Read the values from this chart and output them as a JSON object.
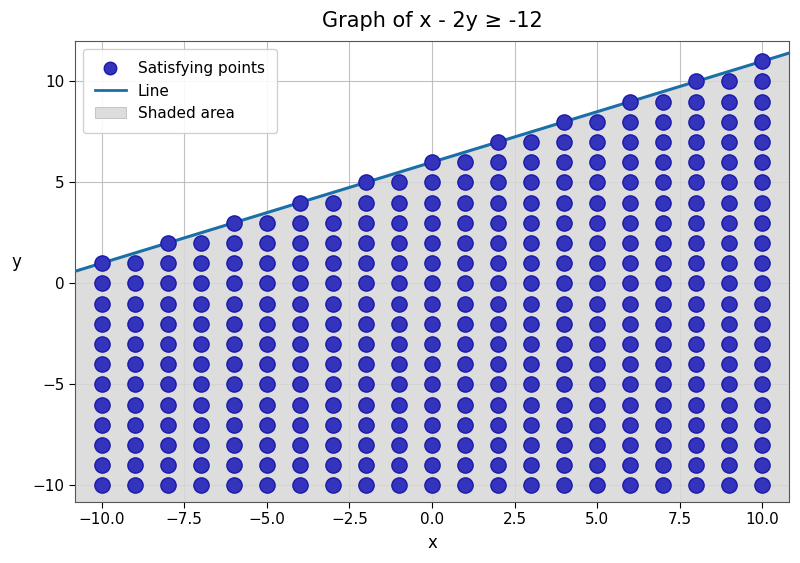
{
  "title": "Graph of x - 2y ≥ -12",
  "xlabel": "x",
  "ylabel": "y",
  "xlim": [
    -10.8,
    10.8
  ],
  "ylim": [
    -10.8,
    12.0
  ],
  "x_ticks": [
    -10.0,
    -7.5,
    -5.0,
    -2.5,
    0.0,
    2.5,
    5.0,
    7.5,
    10.0
  ],
  "y_ticks": [
    -10,
    -5,
    0,
    5,
    10
  ],
  "line_color": "#1a6fa8",
  "line_width": 2.2,
  "dot_color": "#3333bb",
  "dot_edge_color": "#1a1aaa",
  "dot_size": 120,
  "dot_linewidth": 1.0,
  "shade_color": "#d8d8d8",
  "shade_alpha": 0.85,
  "background_color": "#ffffff",
  "plot_bg_color": "#ffffff",
  "grid_color": "#bbbbbb",
  "grid_alpha": 0.9,
  "grid_linewidth": 0.8,
  "dot_x_min": -10,
  "dot_x_max": 10,
  "dot_y_min": -10,
  "dot_y_max": 11,
  "dot_step": 1,
  "legend_dot_label": "Satisfying points",
  "legend_line_label": "Line",
  "legend_shade_label": "Shaded area",
  "title_fontsize": 15,
  "axis_label_fontsize": 12,
  "tick_fontsize": 11,
  "legend_fontsize": 11
}
